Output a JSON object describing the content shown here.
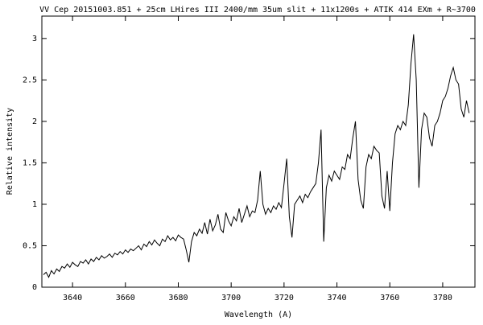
{
  "chart_data": {
    "type": "line",
    "title": "VV Cep 20151003.851 + 25cm LHires III 2400/mm 35um slit + 11x1200s + ATIK 414 EXm + R~3700",
    "x_label": "Wavelength (A)",
    "y_label": "Relative intensity",
    "x": [
      3629,
      3630,
      3631,
      3632,
      3633,
      3634,
      3635,
      3636,
      3637,
      3638,
      3639,
      3640,
      3641,
      3642,
      3643,
      3644,
      3645,
      3646,
      3647,
      3648,
      3649,
      3650,
      3651,
      3652,
      3653,
      3654,
      3655,
      3656,
      3657,
      3658,
      3659,
      3660,
      3661,
      3662,
      3663,
      3664,
      3665,
      3666,
      3667,
      3668,
      3669,
      3670,
      3671,
      3672,
      3673,
      3674,
      3675,
      3676,
      3677,
      3678,
      3679,
      3680,
      3681,
      3682,
      3683,
      3684,
      3685,
      3686,
      3687,
      3688,
      3689,
      3690,
      3691,
      3692,
      3693,
      3694,
      3695,
      3696,
      3697,
      3698,
      3699,
      3700,
      3701,
      3702,
      3703,
      3704,
      3705,
      3706,
      3707,
      3708,
      3709,
      3710,
      3711,
      3712,
      3713,
      3714,
      3715,
      3716,
      3717,
      3718,
      3719,
      3720,
      3721,
      3722,
      3723,
      3724,
      3725,
      3726,
      3727,
      3728,
      3729,
      3730,
      3731,
      3732,
      3733,
      3734,
      3735,
      3736,
      3737,
      3738,
      3739,
      3740,
      3741,
      3742,
      3743,
      3744,
      3745,
      3746,
      3747,
      3748,
      3749,
      3750,
      3751,
      3752,
      3753,
      3754,
      3755,
      3756,
      3757,
      3758,
      3759,
      3760,
      3761,
      3762,
      3763,
      3764,
      3765,
      3766,
      3767,
      3768,
      3769,
      3770,
      3771,
      3772,
      3773,
      3774,
      3775,
      3776,
      3777,
      3778,
      3779,
      3780,
      3781,
      3782,
      3783,
      3784,
      3785,
      3786,
      3787,
      3788,
      3789,
      3790
    ],
    "values": [
      0.15,
      0.18,
      0.12,
      0.2,
      0.16,
      0.22,
      0.19,
      0.25,
      0.23,
      0.28,
      0.24,
      0.3,
      0.27,
      0.25,
      0.31,
      0.29,
      0.33,
      0.28,
      0.34,
      0.31,
      0.36,
      0.33,
      0.38,
      0.35,
      0.37,
      0.4,
      0.36,
      0.41,
      0.39,
      0.43,
      0.4,
      0.45,
      0.42,
      0.46,
      0.44,
      0.47,
      0.5,
      0.45,
      0.52,
      0.49,
      0.55,
      0.51,
      0.57,
      0.53,
      0.5,
      0.58,
      0.55,
      0.62,
      0.57,
      0.6,
      0.56,
      0.63,
      0.6,
      0.58,
      0.45,
      0.3,
      0.55,
      0.66,
      0.62,
      0.7,
      0.65,
      0.78,
      0.64,
      0.82,
      0.68,
      0.75,
      0.88,
      0.7,
      0.66,
      0.9,
      0.8,
      0.74,
      0.85,
      0.8,
      0.95,
      0.78,
      0.88,
      0.98,
      0.85,
      0.92,
      0.9,
      1.05,
      1.4,
      1.0,
      0.88,
      0.95,
      0.9,
      0.98,
      0.94,
      1.02,
      0.96,
      1.25,
      1.55,
      0.85,
      0.6,
      1.0,
      1.05,
      1.1,
      1.02,
      1.12,
      1.08,
      1.15,
      1.2,
      1.25,
      1.5,
      1.9,
      0.55,
      1.2,
      1.35,
      1.28,
      1.4,
      1.35,
      1.3,
      1.45,
      1.42,
      1.6,
      1.55,
      1.8,
      2.0,
      1.3,
      1.05,
      0.95,
      1.45,
      1.6,
      1.55,
      1.7,
      1.65,
      1.62,
      1.1,
      0.95,
      1.4,
      0.92,
      1.5,
      1.85,
      1.95,
      1.9,
      2.0,
      1.95,
      2.2,
      2.7,
      3.05,
      2.5,
      1.2,
      1.9,
      2.1,
      2.05,
      1.8,
      1.7,
      1.95,
      2.0,
      2.1,
      2.25,
      2.3,
      2.4,
      2.55,
      2.65,
      2.5,
      2.45,
      2.15,
      2.05,
      2.25,
      2.1
    ],
    "color": "#000000",
    "xlim": [
      3628.4,
      3792.2
    ],
    "xticks": [
      3640,
      3660,
      3680,
      3700,
      3720,
      3740,
      3760,
      3780
    ],
    "ylim": [
      0,
      3.27
    ],
    "yticks": [
      0,
      0.5,
      1,
      1.5,
      2,
      2.5,
      3
    ]
  }
}
